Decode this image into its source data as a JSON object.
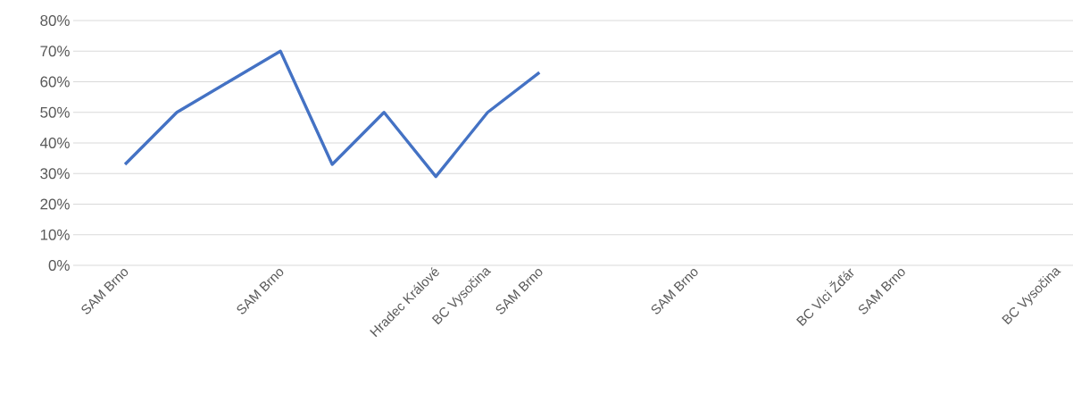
{
  "chart_data": {
    "type": "line",
    "categories": [
      "SAM Brno",
      null,
      null,
      "SAM Brno",
      null,
      null,
      "Hradec Králové",
      "BC Vysočina",
      "SAM Brno",
      null,
      null,
      "SAM Brno",
      null,
      null,
      "BC Vlci Žďár",
      "SAM Brno",
      null,
      null,
      "BC Vysočina"
    ],
    "series": [
      {
        "color": "#4472c4",
        "values": [
          33,
          50,
          60,
          70,
          33,
          50,
          29,
          50,
          63,
          null,
          null,
          null,
          null,
          null,
          null,
          null,
          null,
          null,
          null
        ]
      }
    ],
    "ylim": [
      0,
      80
    ],
    "yticks": [
      {
        "value": 0,
        "label": "0%"
      },
      {
        "value": 10,
        "label": "10%"
      },
      {
        "value": 20,
        "label": "20%"
      },
      {
        "value": 30,
        "label": "30%"
      },
      {
        "value": 40,
        "label": "40%"
      },
      {
        "value": 50,
        "label": "50%"
      },
      {
        "value": 60,
        "label": "60%"
      },
      {
        "value": 70,
        "label": "70%"
      },
      {
        "value": 80,
        "label": "80%"
      }
    ],
    "grid": "y",
    "legend": false,
    "marker": "none",
    "line_style": "solid"
  }
}
